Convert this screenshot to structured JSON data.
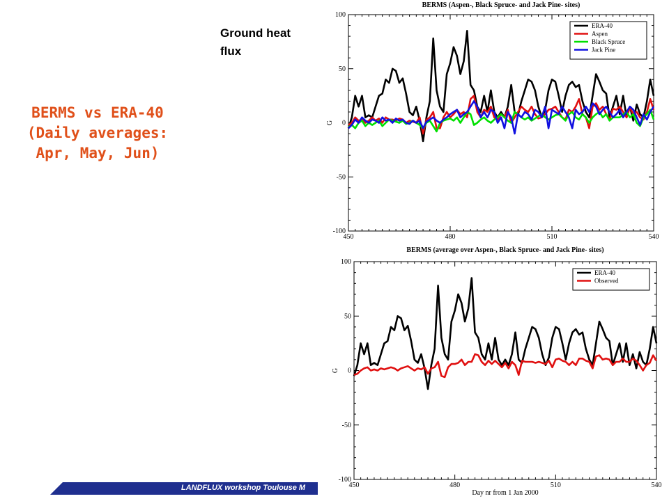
{
  "slide": {
    "title_lines": [
      "BERMS vs ERA-40",
      "(Daily averages:",
      "Apr, May, Jun)"
    ],
    "label_lines": [
      "Ground heat",
      "flux"
    ],
    "footer": "LANDFLUX workshop Toulouse M",
    "colors": {
      "title": "#e0501a",
      "footer_bar": "#1f2f8f"
    }
  },
  "chart_data": [
    {
      "type": "line",
      "title": "BERMS (Aspen-, Black Spruce- and Jack Pine- sites)",
      "xlabel": "",
      "ylabel": "G",
      "xlim": [
        450,
        540
      ],
      "ylim": [
        -100,
        100
      ],
      "xticks": [
        450,
        480,
        510,
        540
      ],
      "yticks": [
        -100,
        -50,
        0,
        50,
        100
      ],
      "legend_position": "top-right",
      "series": [
        {
          "name": "ERA-40",
          "color": "#000000",
          "values": [
            -5,
            5,
            25,
            15,
            25,
            5,
            7,
            5,
            15,
            25,
            27,
            40,
            37,
            50,
            48,
            37,
            41,
            27,
            10,
            7,
            15,
            2,
            -17,
            5,
            20,
            78,
            30,
            15,
            10,
            45,
            55,
            70,
            62,
            45,
            57,
            85,
            35,
            30,
            15,
            10,
            25,
            10,
            30,
            10,
            5,
            10,
            5,
            15,
            35,
            10,
            7,
            20,
            30,
            40,
            38,
            30,
            15,
            5,
            12,
            30,
            40,
            38,
            25,
            10,
            25,
            35,
            38,
            33,
            35,
            20,
            10,
            5,
            25,
            45,
            38,
            30,
            27,
            5,
            15,
            25,
            8,
            25,
            5,
            15,
            2,
            17,
            8,
            5,
            20,
            40,
            25
          ]
        },
        {
          "name": "Aspen",
          "color": "#e01010",
          "values": [
            -2,
            0,
            5,
            2,
            3,
            0,
            2,
            5,
            2,
            4,
            0,
            5,
            3,
            3,
            2,
            4,
            3,
            0,
            2,
            1,
            0,
            5,
            -10,
            3,
            5,
            10,
            -5,
            -5,
            5,
            10,
            5,
            8,
            12,
            8,
            10,
            5,
            22,
            25,
            10,
            5,
            12,
            10,
            15,
            5,
            3,
            8,
            5,
            12,
            0,
            5,
            10,
            15,
            12,
            10,
            15,
            8,
            4,
            5,
            8,
            12,
            13,
            15,
            10,
            5,
            3,
            12,
            10,
            15,
            22,
            8,
            5,
            -5,
            15,
            18,
            12,
            15,
            8,
            3,
            13,
            12,
            15,
            10,
            5,
            14,
            8,
            10,
            5,
            3,
            10,
            22,
            12
          ]
        },
        {
          "name": "Black Spruce",
          "color": "#00e000",
          "values": [
            -4,
            -2,
            -5,
            0,
            2,
            -3,
            0,
            -2,
            0,
            2,
            -3,
            0,
            3,
            2,
            1,
            0,
            2,
            -1,
            0,
            2,
            0,
            -2,
            -5,
            0,
            2,
            -3,
            -8,
            0,
            2,
            3,
            4,
            2,
            5,
            0,
            5,
            10,
            8,
            -2,
            0,
            3,
            5,
            2,
            0,
            3,
            5,
            8,
            5,
            2,
            0,
            10,
            8,
            5,
            3,
            5,
            2,
            4,
            6,
            8,
            5,
            3,
            5,
            7,
            8,
            5,
            2,
            8,
            10,
            5,
            3,
            8,
            5,
            0,
            5,
            8,
            10,
            5,
            8,
            2,
            5,
            5,
            5,
            8,
            10,
            5,
            8,
            0,
            -3,
            5,
            8,
            12,
            3
          ]
        },
        {
          "name": "Jack Pine",
          "color": "#1010e0",
          "values": [
            -5,
            -2,
            3,
            0,
            5,
            2,
            0,
            3,
            2,
            0,
            5,
            2,
            3,
            0,
            4,
            2,
            3,
            0,
            -1,
            2,
            0,
            2,
            -5,
            1,
            3,
            5,
            2,
            0,
            3,
            5,
            8,
            10,
            12,
            5,
            8,
            10,
            15,
            20,
            15,
            5,
            10,
            5,
            12,
            10,
            0,
            5,
            -5,
            10,
            5,
            -10,
            8,
            5,
            10,
            8,
            3,
            12,
            10,
            5,
            15,
            -5,
            12,
            10,
            8,
            15,
            10,
            5,
            -5,
            12,
            8,
            10,
            15,
            10,
            18,
            15,
            8,
            12,
            15,
            10,
            5,
            8,
            12,
            5,
            10,
            15,
            12,
            5,
            -2,
            8,
            3,
            10,
            15
          ]
        }
      ]
    },
    {
      "type": "line",
      "title": "BERMS (average over Aspen-, Black Spruce- and Jack Pine- sites)",
      "xlabel": "Day nr from 1 Jan 2000",
      "ylabel": "G",
      "xlim": [
        450,
        540
      ],
      "ylim": [
        -100,
        100
      ],
      "xticks": [
        450,
        480,
        510,
        540
      ],
      "yticks": [
        -100,
        -50,
        0,
        50,
        100
      ],
      "legend_position": "top-right",
      "series": [
        {
          "name": "ERA-40",
          "color": "#000000",
          "values": [
            -5,
            5,
            25,
            15,
            25,
            5,
            7,
            5,
            15,
            25,
            27,
            40,
            37,
            50,
            48,
            37,
            41,
            27,
            10,
            7,
            15,
            2,
            -17,
            5,
            20,
            78,
            30,
            15,
            10,
            45,
            55,
            70,
            62,
            45,
            57,
            85,
            35,
            30,
            15,
            10,
            25,
            10,
            30,
            10,
            5,
            10,
            5,
            15,
            35,
            10,
            7,
            20,
            30,
            40,
            38,
            30,
            15,
            5,
            12,
            30,
            40,
            38,
            25,
            10,
            25,
            35,
            38,
            33,
            35,
            20,
            10,
            5,
            25,
            45,
            38,
            30,
            27,
            5,
            15,
            25,
            8,
            25,
            5,
            15,
            2,
            17,
            8,
            5,
            20,
            40,
            25
          ]
        },
        {
          "name": "Observed",
          "color": "#e01010",
          "values": [
            -4,
            -3,
            0,
            2,
            3,
            0,
            1,
            0,
            2,
            1,
            2,
            3,
            2,
            0,
            2,
            3,
            4,
            2,
            0,
            2,
            1,
            3,
            -3,
            2,
            3,
            8,
            -5,
            -6,
            3,
            6,
            6,
            7,
            10,
            5,
            8,
            8,
            15,
            14,
            8,
            5,
            9,
            6,
            9,
            6,
            3,
            7,
            2,
            8,
            5,
            -4,
            9,
            8,
            8,
            8,
            7,
            8,
            7,
            6,
            9,
            3,
            10,
            11,
            9,
            8,
            5,
            8,
            5,
            11,
            11,
            9,
            8,
            2,
            13,
            14,
            10,
            11,
            10,
            5,
            8,
            8,
            11,
            8,
            8,
            11,
            9,
            5,
            0,
            5,
            7,
            14,
            9
          ]
        }
      ]
    }
  ]
}
